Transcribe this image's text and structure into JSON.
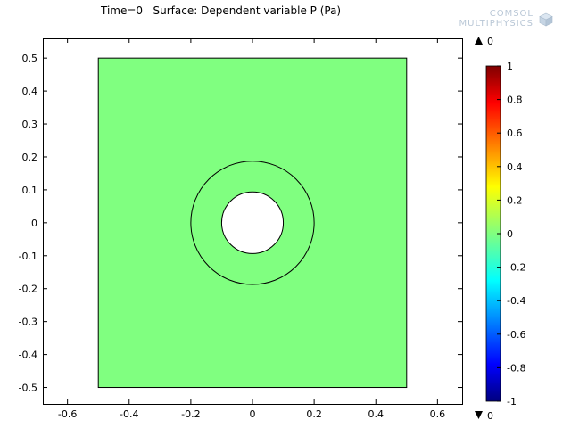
{
  "title": "Time=0   Surface: Dependent variable P (Pa)",
  "logo": {
    "line1": "COMSOL",
    "line2": "MULTIPHYSICS"
  },
  "colors": {
    "surface": "#80ff80",
    "boundary": "#000000",
    "hole": "#ffffff"
  },
  "chart_data": {
    "type": "heatmap",
    "title": "Time=0   Surface: Dependent variable P (Pa)",
    "xlim": [
      -0.68,
      0.68
    ],
    "ylim": [
      -0.55,
      0.56
    ],
    "xticks": [
      -0.6,
      -0.4,
      -0.2,
      0,
      0.2,
      0.4,
      0.6
    ],
    "xtick_labels": [
      "-0.6",
      "-0.4",
      "-0.2",
      "0",
      "0.2",
      "0.4",
      "0.6"
    ],
    "yticks": [
      0.5,
      0.4,
      0.3,
      0.2,
      0.1,
      0,
      -0.1,
      -0.2,
      -0.3,
      -0.4,
      -0.5
    ],
    "ytick_labels": [
      "0.5",
      "0.4",
      "0.3",
      "0.2",
      "0.1",
      "0",
      "-0.1",
      "-0.2",
      "-0.3",
      "-0.4",
      "-0.5"
    ],
    "domain": {
      "square": {
        "xmin": -0.5,
        "xmax": 0.5,
        "ymin": -0.5,
        "ymax": 0.5
      },
      "outer_circle_radius": 0.2,
      "hole_radius": 0.1,
      "surface_value": 0
    },
    "colorbar": {
      "ticks": [
        1,
        0.8,
        0.6,
        0.4,
        0.2,
        0,
        -0.2,
        -0.4,
        -0.6,
        -0.8,
        -1
      ],
      "tick_labels": [
        "1",
        "0.8",
        "0.6",
        "0.4",
        "0.2",
        "0",
        "-0.2",
        "-0.4",
        "-0.6",
        "-0.8",
        "-1"
      ],
      "range": [
        -1,
        1
      ],
      "max_label": "0",
      "min_label": "0"
    }
  }
}
